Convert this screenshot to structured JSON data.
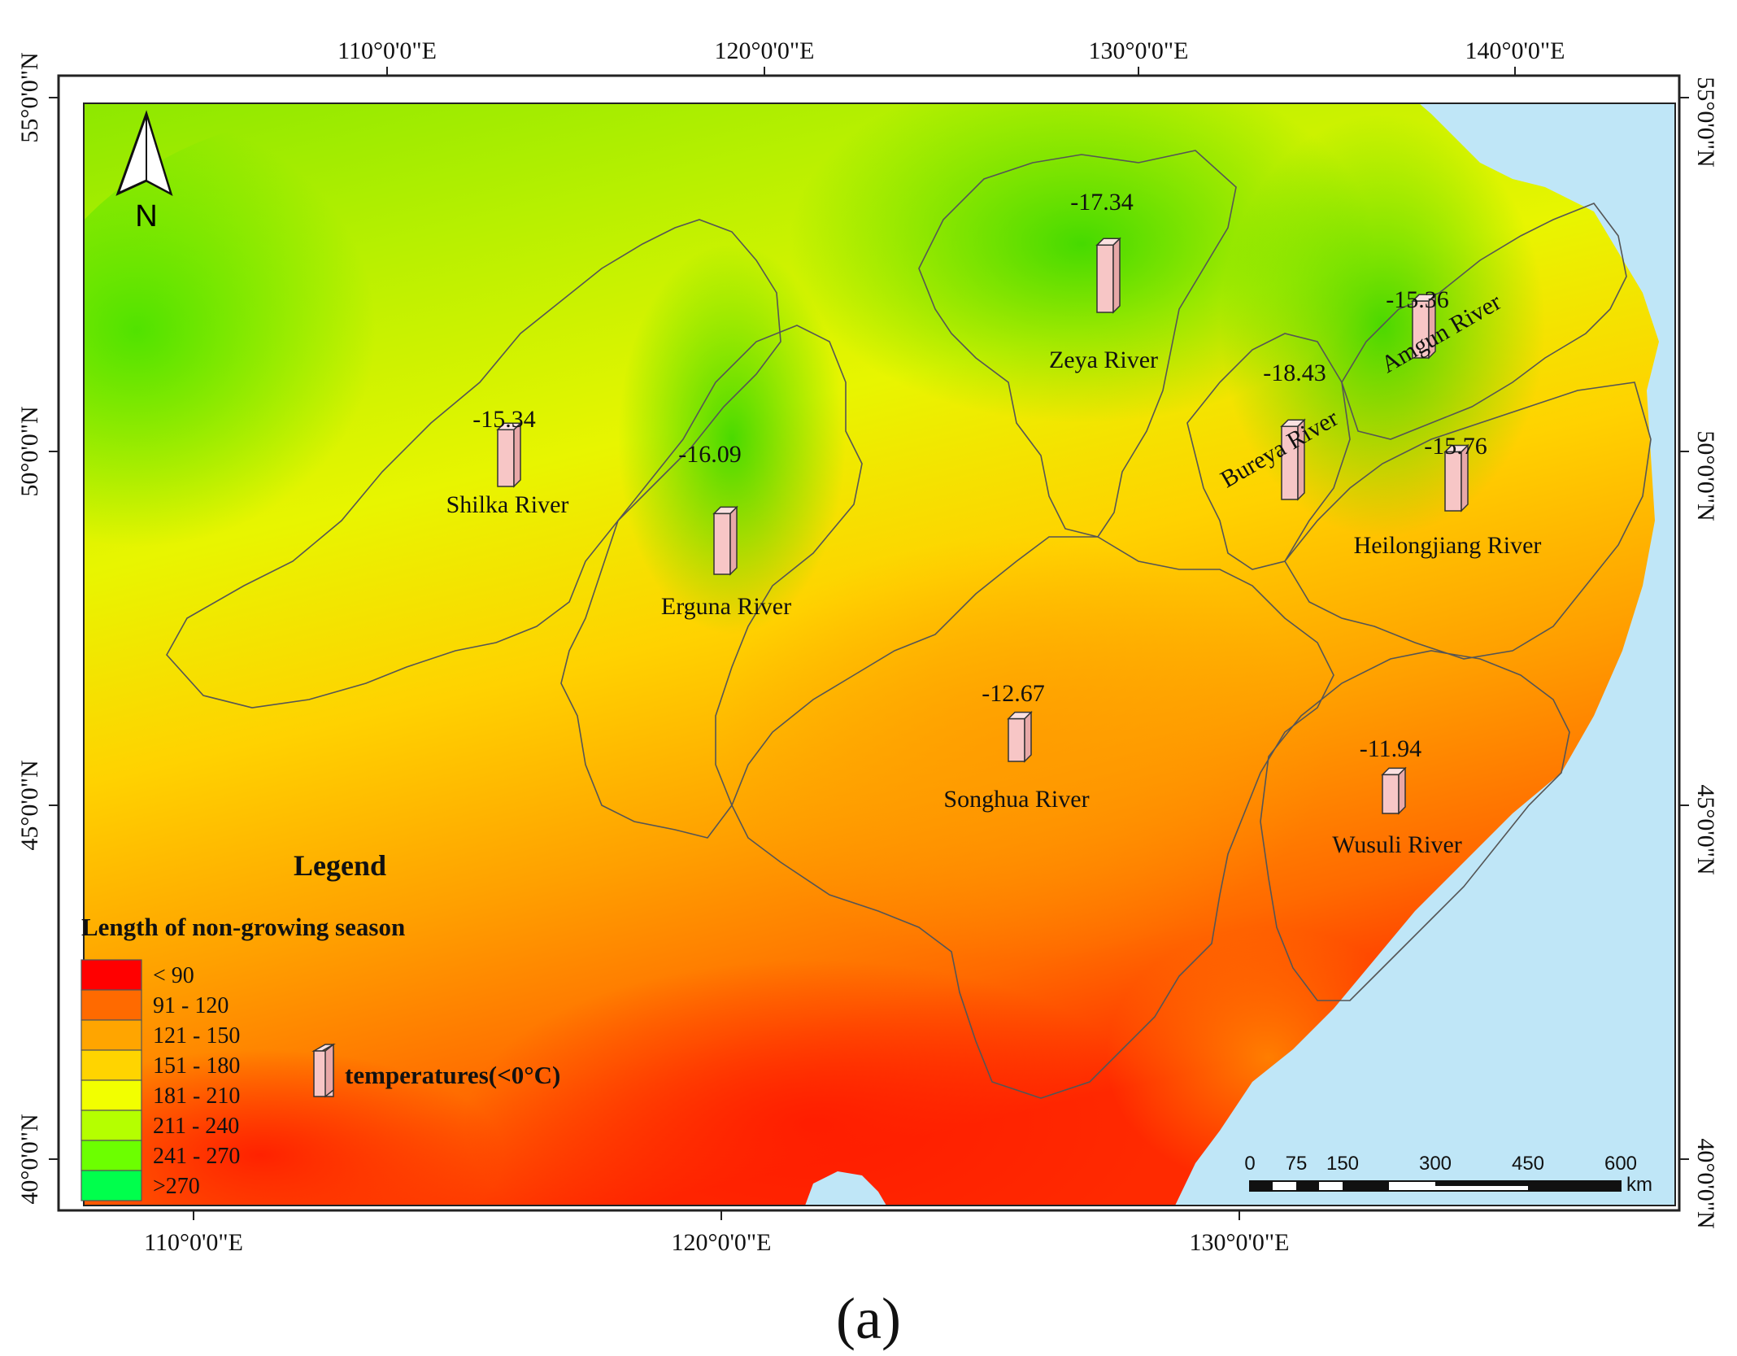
{
  "figure": {
    "caption": "(a)"
  },
  "map": {
    "lon_labels_top": [
      "110°0'0\"E",
      "120°0'0\"E",
      "130°0'0\"E",
      "140°0'0\"E"
    ],
    "lon_labels_bottom": [
      "110°0'0\"E",
      "120°0'0\"E",
      "130°0'0\"E"
    ],
    "lat_labels_left": [
      "55°0'0\"N",
      "50°0'0\"N",
      "45°0'0\"N",
      "40°0'0\"N"
    ],
    "lat_labels_right": [
      "55°0'0\"N",
      "50°0'0\"N",
      "45°0'0\"N",
      "40°0'0\"N"
    ],
    "north_arrow_label": "N",
    "colors": {
      "sea": "#bfe6f7",
      "boundary": "#555555",
      "bar_fill": "#f7c6c6",
      "bar_side": "#e8a8a8",
      "bar_top": "#fbe1e1"
    }
  },
  "rivers": [
    {
      "name": "Shilka River",
      "value": "-15.34",
      "temp": -15.34
    },
    {
      "name": "Erguna River",
      "value": "-16.09",
      "temp": -16.09
    },
    {
      "name": "Zeya River",
      "value": "-17.34",
      "temp": -17.34
    },
    {
      "name": "Bureya River",
      "value": "-18.43",
      "temp": -18.43
    },
    {
      "name": "Amgun River",
      "value": "-15.36",
      "temp": -15.36
    },
    {
      "name": "Heilongjiang River",
      "value": "-15.76",
      "temp": -15.76
    },
    {
      "name": "Songhua River",
      "value": "-12.67",
      "temp": -12.67
    },
    {
      "name": "Wusuli River",
      "value": "-11.94",
      "temp": -11.94
    }
  ],
  "legend": {
    "title": "Legend",
    "subtitle": "Length of non-growing season",
    "classes": [
      {
        "label": "< 90",
        "color": "#ff0000"
      },
      {
        "label": "91 - 120",
        "color": "#ff6a00"
      },
      {
        "label": "121 - 150",
        "color": "#ffa500"
      },
      {
        "label": "151 - 180",
        "color": "#ffd400"
      },
      {
        "label": "181 - 210",
        "color": "#f2ff00"
      },
      {
        "label": "211 - 240",
        "color": "#b5ff00"
      },
      {
        "label": "241 - 270",
        "color": "#6cff00"
      },
      {
        "label": ">270",
        "color": "#00ff4c"
      }
    ],
    "bar_label": "temperatures(<0°C)"
  },
  "scale_bar": {
    "ticks": [
      "0",
      "75",
      "150",
      "300",
      "450",
      "600"
    ],
    "unit": "km"
  }
}
